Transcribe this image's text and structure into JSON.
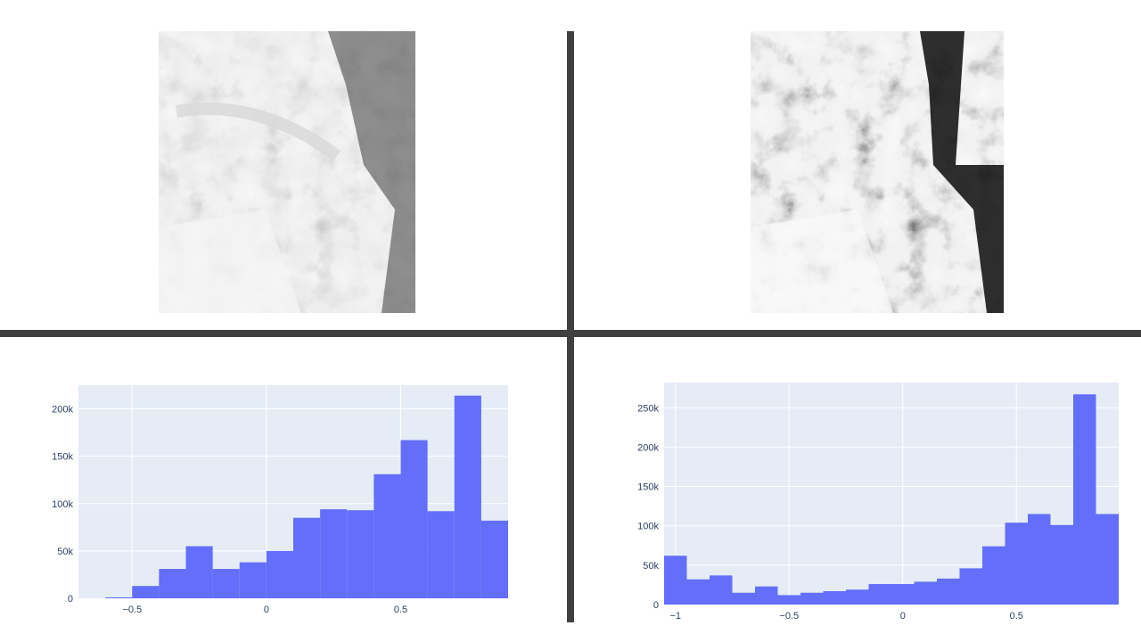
{
  "colors": {
    "plot_bg": "#e5ecf6",
    "grid": "#ffffff",
    "bar": "#636efa",
    "divider": "#404040",
    "tick_text": "#2a3f5f"
  },
  "images": {
    "left": {
      "icon": "grayscale-terrain-satellite-image"
    },
    "right": {
      "icon": "high-contrast-terrain-satellite-image"
    }
  },
  "chart_data": [
    {
      "type": "bar",
      "bin_edges": [
        -0.6,
        -0.5,
        -0.4,
        -0.3,
        -0.2,
        -0.1,
        0.0,
        0.1,
        0.2,
        0.3,
        0.4,
        0.5,
        0.6,
        0.7,
        0.8,
        0.9
      ],
      "values": [
        1000,
        13000,
        31000,
        55000,
        31000,
        38000,
        50000,
        85000,
        94000,
        93000,
        131000,
        167000,
        92000,
        214000,
        82000
      ],
      "xlim": [
        -0.7,
        0.9
      ],
      "ylim": [
        0,
        225000
      ],
      "xticks": [
        -0.5,
        0,
        0.5
      ],
      "xtick_labels": [
        "−0.5",
        "0",
        "0.5"
      ],
      "yticks": [
        0,
        50000,
        100000,
        150000,
        200000
      ],
      "ytick_labels": [
        "0",
        "50k",
        "100k",
        "150k",
        "200k"
      ],
      "grid": true
    },
    {
      "type": "bar",
      "bin_edges": [
        -1.05,
        -0.95,
        -0.85,
        -0.75,
        -0.65,
        -0.55,
        -0.45,
        -0.35,
        -0.25,
        -0.15,
        -0.05,
        0.05,
        0.15,
        0.25,
        0.35,
        0.45,
        0.55,
        0.65,
        0.75,
        0.85,
        0.95
      ],
      "values": [
        62000,
        32000,
        37000,
        15000,
        23000,
        12000,
        15000,
        17000,
        19000,
        26000,
        26000,
        29000,
        33000,
        46000,
        74000,
        104000,
        115000,
        101000,
        267000,
        115000
      ],
      "xlim": [
        -1.05,
        0.95
      ],
      "ylim": [
        0,
        282000
      ],
      "xticks": [
        -1,
        -0.5,
        0,
        0.5
      ],
      "xtick_labels": [
        "−1",
        "−0.5",
        "0",
        "0.5"
      ],
      "yticks": [
        0,
        50000,
        100000,
        150000,
        200000,
        250000
      ],
      "ytick_labels": [
        "0",
        "50k",
        "100k",
        "150k",
        "200k",
        "250k"
      ],
      "grid": true
    }
  ]
}
